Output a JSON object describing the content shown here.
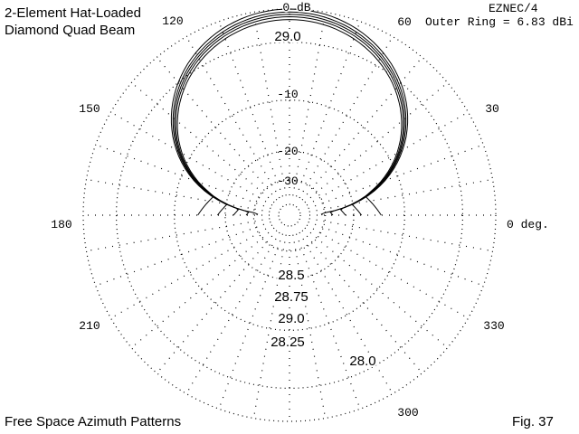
{
  "header": {
    "title_line1": "2-Element Hat-Loaded",
    "title_line2": "Diamond Quad Beam",
    "program": "EZNEC/4",
    "outer_ring": "Outer Ring = 6.83 dBi"
  },
  "footer": {
    "left": "Free Space Azimuth Patterns",
    "right": "Fig. 37"
  },
  "chart_data": {
    "type": "polar",
    "title": "2-Element Hat-Loaded Diamond Quad Beam",
    "subtitle": "Free Space Azimuth Patterns",
    "angle_unit": "deg",
    "angle_ticks": [
      {
        "deg": 0,
        "label": "0 deg."
      },
      {
        "deg": 30,
        "label": "30"
      },
      {
        "deg": 60,
        "label": "60"
      },
      {
        "deg": 90,
        "label": ""
      },
      {
        "deg": 120,
        "label": "120"
      },
      {
        "deg": 150,
        "label": "150"
      },
      {
        "deg": 180,
        "label": "180"
      },
      {
        "deg": 210,
        "label": "210"
      },
      {
        "deg": 240,
        "label": ""
      },
      {
        "deg": 270,
        "label": ""
      },
      {
        "deg": 300,
        "label": "300"
      },
      {
        "deg": 330,
        "label": "330"
      }
    ],
    "radial_rings_db": [
      0,
      -3,
      -10,
      -20,
      -30
    ],
    "radial_labels": [
      {
        "db": 0,
        "label": "0 dB"
      },
      {
        "db": -10,
        "label": "-10"
      },
      {
        "db": -20,
        "label": "-20"
      },
      {
        "db": -30,
        "label": "-30"
      }
    ],
    "outer_ring_dbi": 6.83,
    "grid": true,
    "series": [
      {
        "name": "29.0",
        "front_db": 0.0,
        "rear_db": -7.5,
        "rear_width": 50
      },
      {
        "name": "28.75",
        "front_db": -0.25,
        "rear_db": -6.5,
        "rear_width": 60
      },
      {
        "name": "28.5",
        "front_db": -0.45,
        "rear_db": -5.5,
        "rear_width": 70
      },
      {
        "name": "28.25",
        "front_db": -0.65,
        "rear_db": -4.0,
        "rear_width": 80
      },
      {
        "name": "28.0",
        "front_db": -0.9,
        "rear_db": -2.5,
        "rear_width": 92
      }
    ],
    "annotations": [
      {
        "text": "29.0",
        "near": "front-lobe"
      },
      {
        "text": "28.5",
        "near": "rear-lobe"
      },
      {
        "text": "28.75",
        "near": "rear-lobe"
      },
      {
        "text": "29.0",
        "near": "rear-lobe"
      },
      {
        "text": "28.25",
        "near": "rear-lobe"
      },
      {
        "text": "28.0",
        "near": "rear-lobe"
      }
    ]
  }
}
